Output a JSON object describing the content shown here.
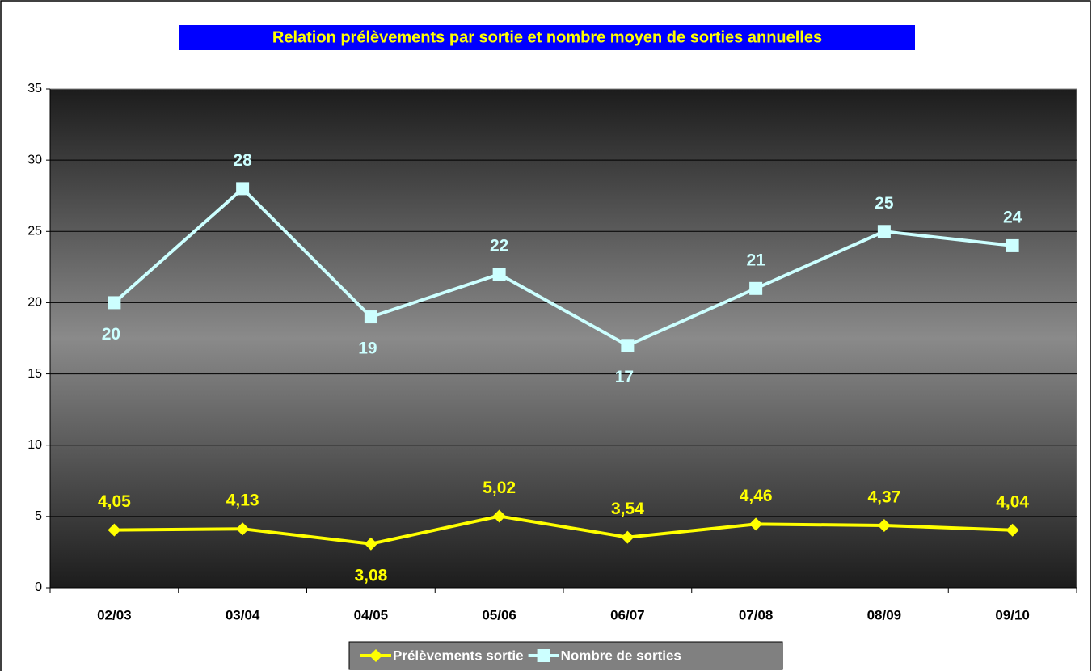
{
  "chart_data": {
    "type": "line",
    "title": "Relation prélèvements par sortie et nombre moyen de sorties annuelles",
    "categories": [
      "02/03",
      "03/04",
      "04/05",
      "05/06",
      "06/07",
      "07/08",
      "08/09",
      "09/10"
    ],
    "series": [
      {
        "name": "Prélèvements sortie",
        "color": "#ffff00",
        "values": [
          4.05,
          4.13,
          3.08,
          5.02,
          3.54,
          4.46,
          4.37,
          4.04
        ],
        "value_labels": [
          "4,05",
          "4,13",
          "3,08",
          "5,02",
          "3,54",
          "4,46",
          "4,37",
          "4,04"
        ]
      },
      {
        "name": "Nombre de sorties",
        "color": "#ccffff",
        "values": [
          20,
          28,
          19,
          22,
          17,
          21,
          25,
          24
        ]
      }
    ],
    "ylim": [
      0,
      35
    ],
    "yticks": [
      0,
      5,
      10,
      15,
      20,
      25,
      30,
      35
    ],
    "grid": true,
    "legend": "bottom"
  }
}
